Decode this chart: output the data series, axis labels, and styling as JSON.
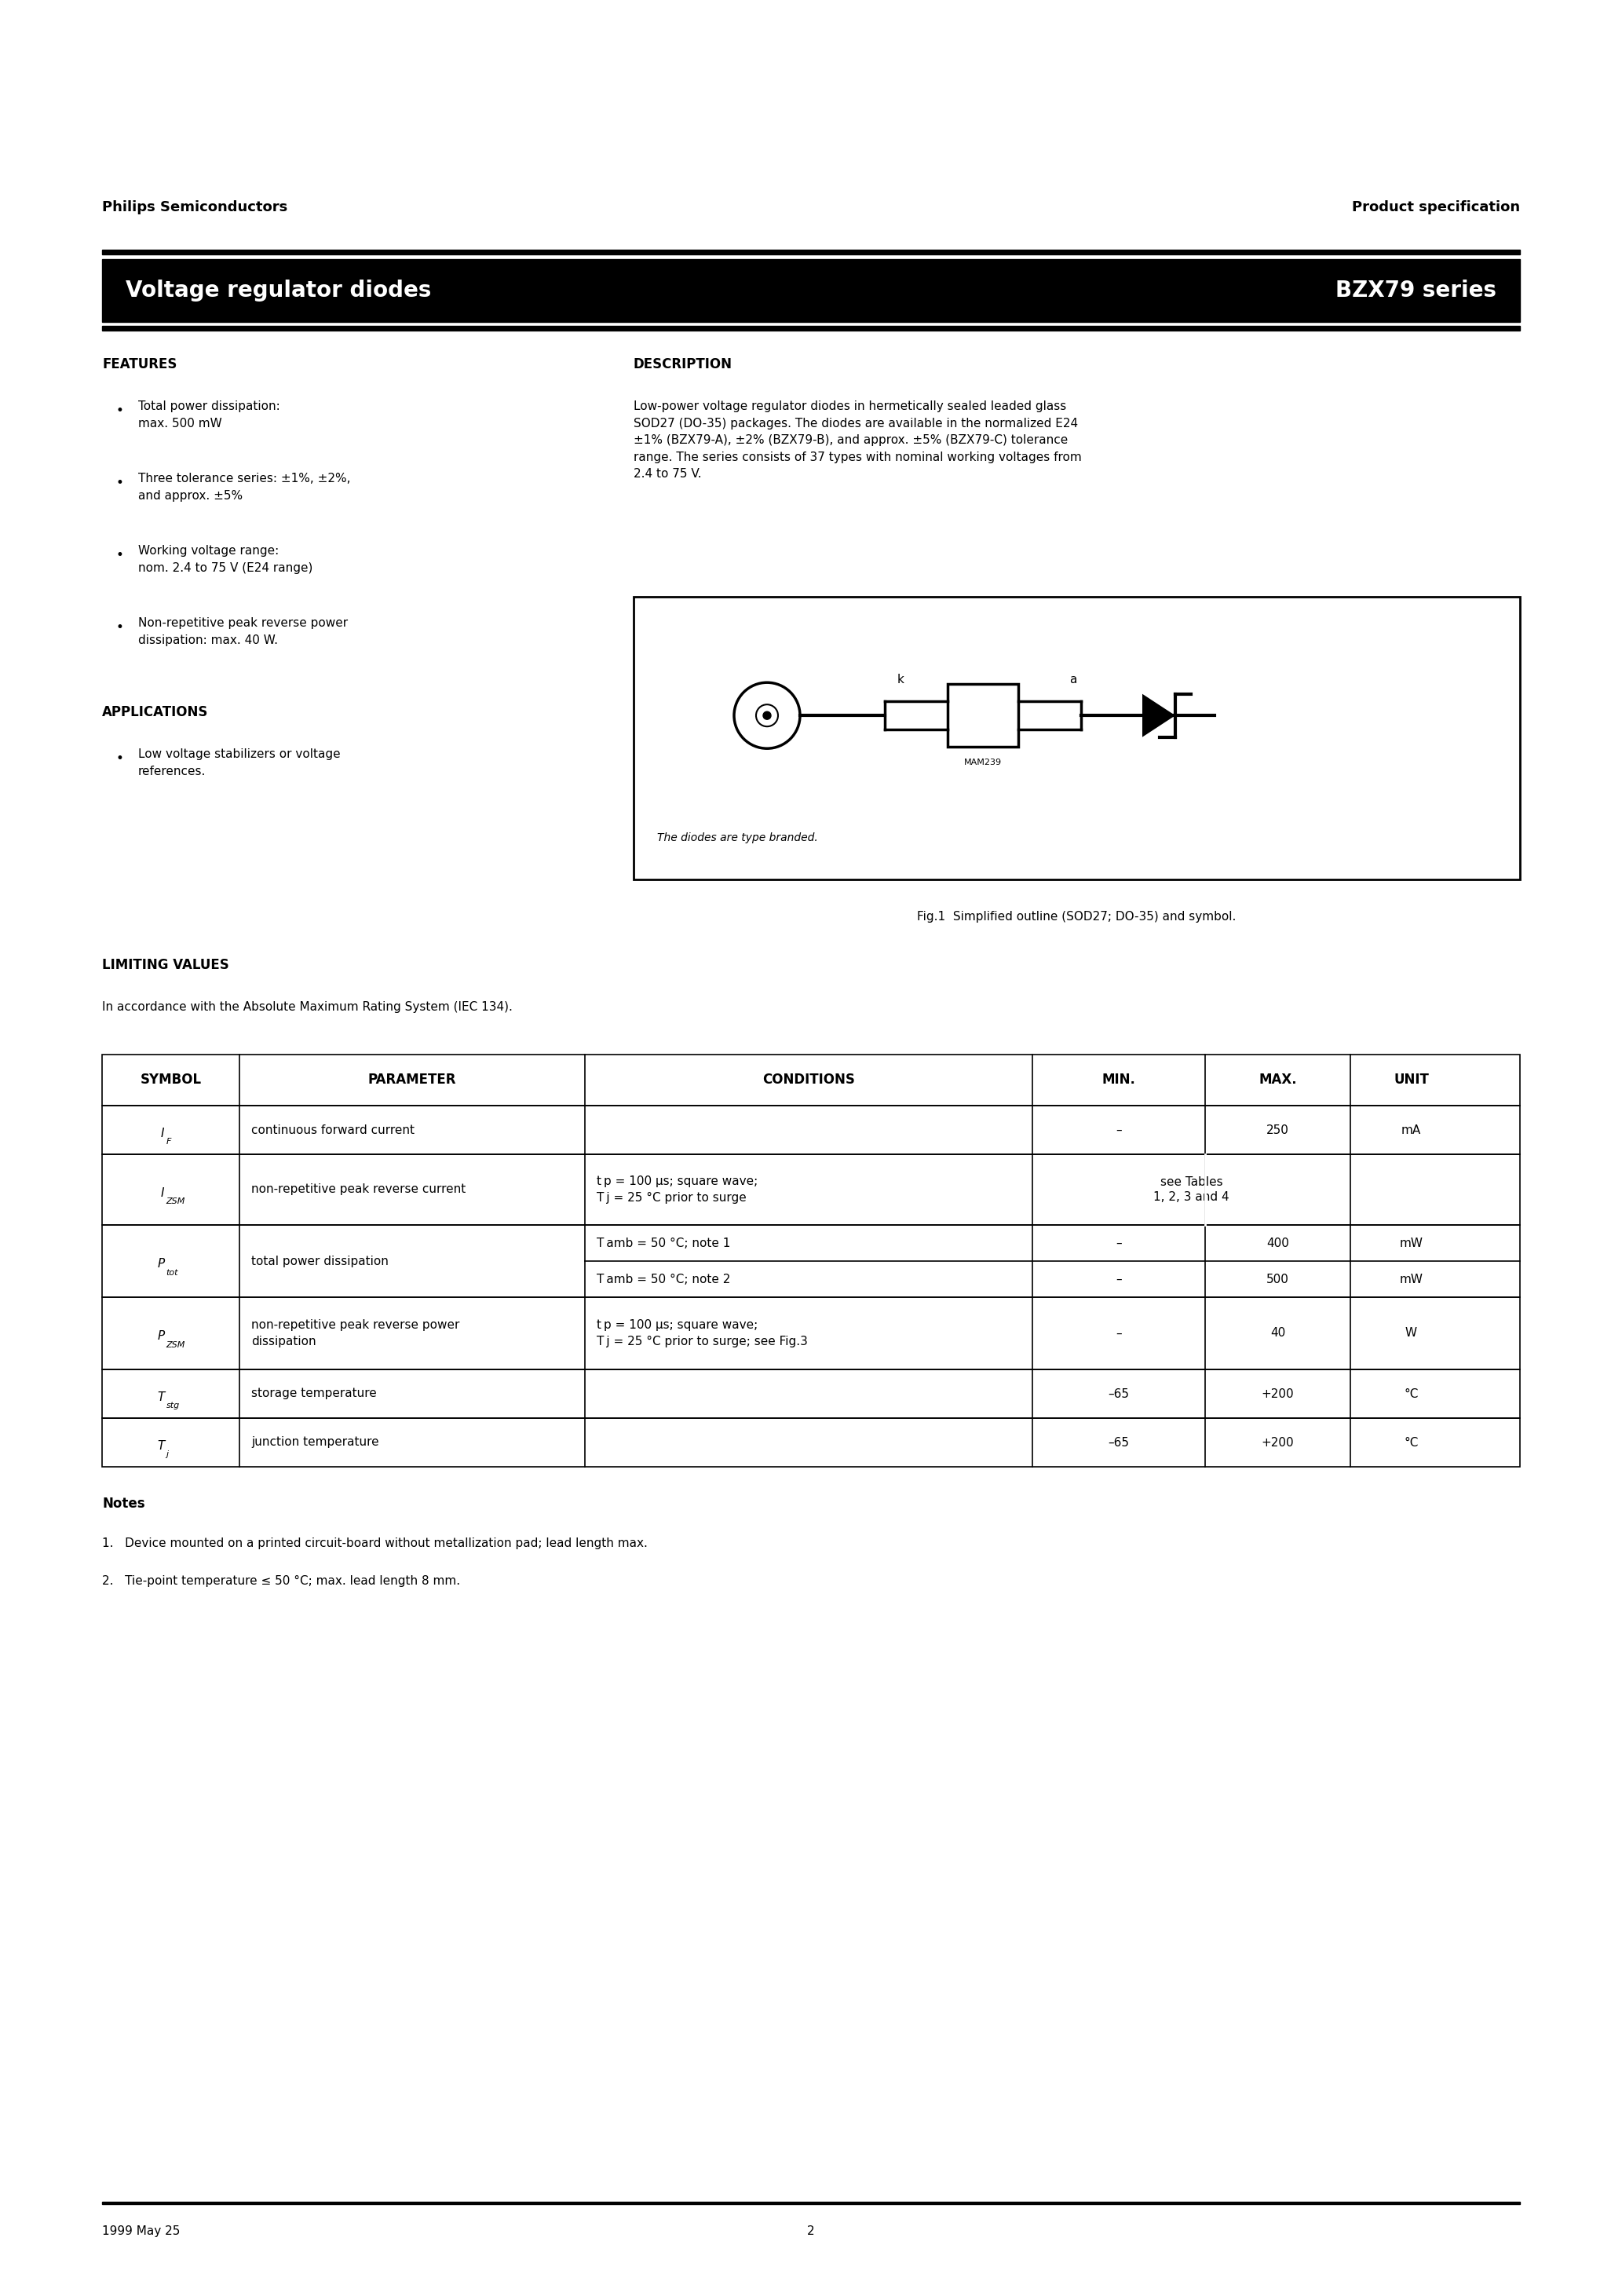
{
  "page_title_left": "Voltage regulator diodes",
  "page_title_right": "BZX79 series",
  "header_left": "Philips Semiconductors",
  "header_right": "Product specification",
  "features_title": "FEATURES",
  "features_bullets": [
    "Total power dissipation:\nmax. 500 mW",
    "Three tolerance series: ±1%, ±2%,\nand approx. ±5%",
    "Working voltage range:\nnom. 2.4 to 75 V (E24 range)",
    "Non-repetitive peak reverse power\ndissipation: max. 40 W."
  ],
  "applications_title": "APPLICATIONS",
  "applications_bullets": [
    "Low voltage stabilizers or voltage\nreferences."
  ],
  "description_title": "DESCRIPTION",
  "description_text": "Low-power voltage regulator diodes in hermetically sealed leaded glass\nSOD27 (DO-35) packages. The diodes are available in the normalized E24\n±1% (BZX79-A), ±2% (BZX79-B), and approx. ±5% (BZX79-C) tolerance\nrange. The series consists of 37 types with nominal working voltages from\n2.4 to 75 V.",
  "fig_caption": "Fig.1  Simplified outline (SOD27; DO-35) and symbol.",
  "fig_note": "The diodes are type branded.",
  "limiting_values_title": "LIMITING VALUES",
  "limiting_values_subtitle": "In accordance with the Absolute Maximum Rating System (IEC 134).",
  "table_headers": [
    "SYMBOL",
    "PARAMETER",
    "CONDITIONS",
    "MIN.",
    "MAX.",
    "UNIT"
  ],
  "notes_title": "Notes",
  "notes": [
    "1.   Device mounted on a printed circuit-board without metallization pad; lead length max.",
    "2.   Tie-point temperature ≤ 50 °C; max. lead length 8 mm."
  ],
  "footer_left": "1999 May 25",
  "footer_center": "2",
  "bg_color": "#ffffff",
  "text_color": "#000000",
  "bar_color": "#000000",
  "header_fontsize": 13,
  "title_fontsize": 20,
  "section_fontsize": 12,
  "body_fontsize": 11,
  "table_header_fontsize": 12,
  "table_body_fontsize": 11
}
